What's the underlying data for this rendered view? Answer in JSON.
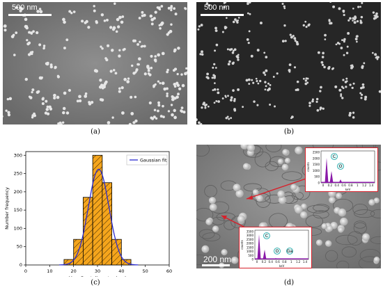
{
  "panels": {
    "a": {
      "caption": "(a)",
      "scalebar": "500 nm"
    },
    "b": {
      "caption": "(b)",
      "scalebar": "500 nm"
    },
    "c": {
      "caption": "(c)"
    },
    "d": {
      "caption": "(d)",
      "scalebar": "200 nm"
    }
  },
  "colors": {
    "bar_fill": "#f5a51c",
    "fit_line": "#2b2bd0",
    "inset_border": "#d8202a",
    "spectrum": "#8a1aa8"
  },
  "chart_data": {
    "type": "bar",
    "xlabel": "Max. Feret diameter (nm)",
    "ylabel": "Number frequency",
    "xlim": [
      0,
      60
    ],
    "ylim": [
      0,
      310
    ],
    "xticks": [
      0,
      10,
      20,
      30,
      40,
      50,
      60
    ],
    "yticks": [
      0,
      50,
      100,
      150,
      200,
      250,
      300
    ],
    "legend": "top-right",
    "bins": [
      {
        "x0": 16,
        "x1": 20,
        "value": 15
      },
      {
        "x0": 20,
        "x1": 24,
        "value": 70
      },
      {
        "x0": 24,
        "x1": 28,
        "value": 185
      },
      {
        "x0": 28,
        "x1": 32,
        "value": 300
      },
      {
        "x0": 32,
        "x1": 36,
        "value": 225
      },
      {
        "x0": 36,
        "x1": 40,
        "value": 70
      },
      {
        "x0": 40,
        "x1": 44,
        "value": 15
      }
    ],
    "series": [
      {
        "name": "Gaussian fit",
        "type": "line",
        "mean": 30.5,
        "sd": 4.3,
        "peak": 262
      }
    ]
  },
  "insets": [
    {
      "labels": [
        "C",
        "O"
      ],
      "ylabel": "counts",
      "xlabel": "keV",
      "yticks": [
        "2500",
        "2000",
        "1500",
        "1000",
        "500",
        "0"
      ],
      "xticks": [
        "0",
        "0.2",
        "0.4",
        "0.6",
        "0.8",
        "1",
        "1.2",
        "1.4"
      ]
    },
    {
      "labels": [
        "C",
        "O",
        "Ga"
      ],
      "ylabel": "counts",
      "xlabel": "keV",
      "yticks": [
        "3500",
        "3000",
        "2500",
        "2000",
        "1500",
        "1000",
        "500",
        "0"
      ],
      "xticks": [
        "0",
        "0.2",
        "0.4",
        "0.6",
        "0.8",
        "1",
        "1.2",
        "1.4"
      ]
    }
  ]
}
